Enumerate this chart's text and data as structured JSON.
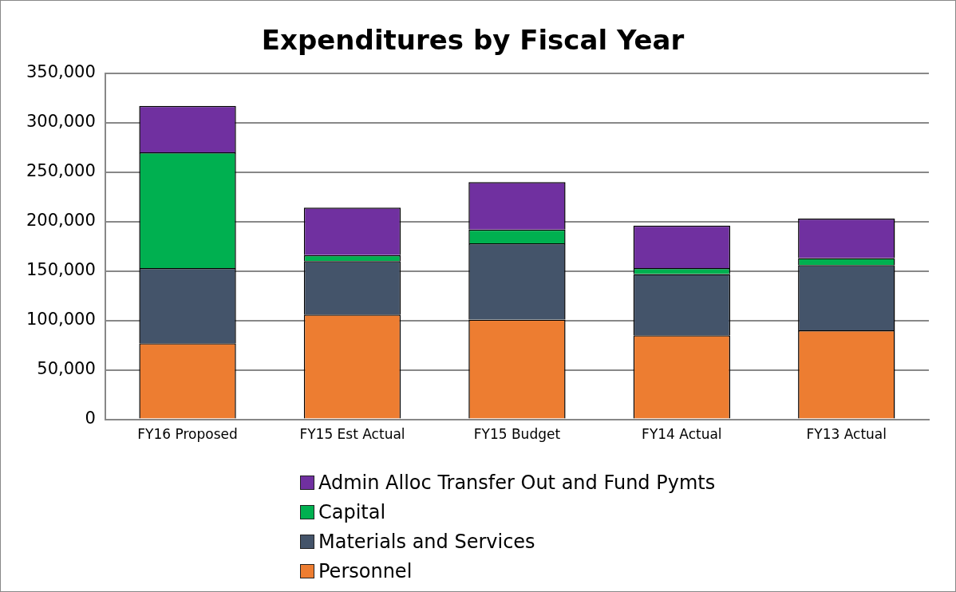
{
  "chart_data": {
    "type": "bar",
    "title": "Expenditures by Fiscal Year",
    "categories": [
      "FY16 Proposed",
      "FY15 Est Actual",
      "FY15 Budget",
      "FY14 Actual",
      "FY13 Actual"
    ],
    "stacked": true,
    "series": [
      {
        "name": "Personnel",
        "color": "#ed7d31",
        "values": [
          77000,
          106000,
          101000,
          85000,
          90000
        ]
      },
      {
        "name": "Materials and Services",
        "color": "#44546a",
        "values": [
          76000,
          54000,
          77000,
          62000,
          66000
        ]
      },
      {
        "name": "Capital",
        "color": "#00b050",
        "values": [
          117000,
          6000,
          14000,
          6000,
          7000
        ]
      },
      {
        "name": "Admin Alloc Transfer Out and Fund Pymts",
        "color": "#7030a0",
        "values": [
          47000,
          48000,
          48000,
          43000,
          40000
        ]
      }
    ],
    "ylim": [
      0,
      350000
    ],
    "yticks": [
      {
        "value": 0,
        "label": "0"
      },
      {
        "value": 50000,
        "label": "50,000"
      },
      {
        "value": 100000,
        "label": "100,000"
      },
      {
        "value": 150000,
        "label": "150,000"
      },
      {
        "value": 200000,
        "label": "200,000"
      },
      {
        "value": 250000,
        "label": "250,000"
      },
      {
        "value": 300000,
        "label": "300,000"
      },
      {
        "value": 350000,
        "label": "350,000"
      }
    ],
    "grid": "y",
    "legend": "bottom"
  }
}
